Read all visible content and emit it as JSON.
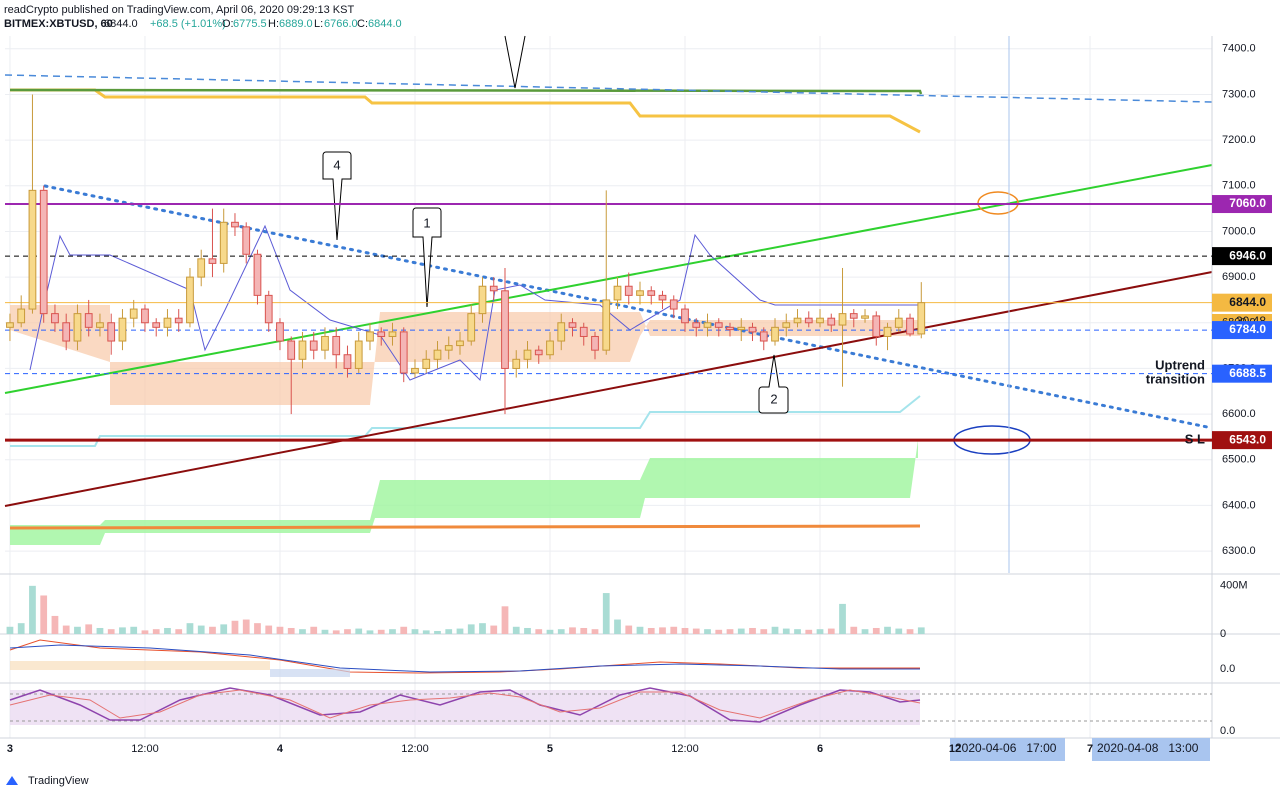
{
  "header": {
    "line1": "readCrypto published on TradingView.com, April 06, 2020 09:29:13 KST",
    "symbol": "BITMEX:XBTUSD, 60",
    "last": "6844.0",
    "change": "+68.5 (+1.01%)",
    "o_label": "O:",
    "o": "6775.5",
    "h_label": "H:",
    "h": "6889.0",
    "l_label": "L:",
    "l": "6766.0",
    "c_label": "C:",
    "c": "6844.0"
  },
  "footer": {
    "brand": "TradingView"
  },
  "chart_data": {
    "type": "candlestick",
    "up_color": "#f7d98b",
    "down_color": "#f4b5b5",
    "up_stroke": "#c89a3a",
    "down_stroke": "#d9534f",
    "open": [
      6790,
      6800,
      6830,
      7090,
      6820,
      6800,
      6760,
      6820,
      6790,
      6800,
      6760,
      6810,
      6830,
      6800,
      6790,
      6810,
      6800,
      6900,
      6940,
      6930,
      7020,
      7010,
      6950,
      6860,
      6800,
      6760,
      6720,
      6760,
      6740,
      6770,
      6730,
      6700,
      6760,
      6780,
      6770,
      6780,
      6690,
      6700,
      6720,
      6740,
      6750,
      6760,
      6820,
      6880,
      6870,
      6700,
      6720,
      6740,
      6730,
      6760,
      6800,
      6790,
      6770,
      6740,
      6850,
      6880,
      6860,
      6870,
      6860,
      6850,
      6830,
      6800,
      6790,
      6800,
      6790,
      6785,
      6790,
      6780,
      6760,
      6790,
      6800,
      6810,
      6800,
      6810,
      6795,
      6820,
      6810,
      6815,
      6770,
      6790,
      6810,
      6775.5
    ],
    "high": [
      6820,
      6860,
      7300,
      7100,
      6840,
      6820,
      6840,
      6850,
      6820,
      6820,
      6830,
      6850,
      6840,
      6810,
      6830,
      6830,
      6920,
      6960,
      7050,
      7050,
      7040,
      7020,
      6960,
      6870,
      6810,
      6770,
      6780,
      6780,
      6790,
      6790,
      6750,
      6780,
      6800,
      6790,
      6800,
      6790,
      6720,
      6740,
      6760,
      6770,
      6780,
      6840,
      6900,
      6900,
      6920,
      6740,
      6760,
      6750,
      6780,
      6820,
      6810,
      6800,
      6780,
      7090,
      6900,
      6910,
      6890,
      6880,
      6870,
      6860,
      6840,
      6810,
      6820,
      6810,
      6800,
      6810,
      6800,
      6790,
      6810,
      6820,
      6830,
      6825,
      6830,
      6820,
      6920,
      6830,
      6830,
      6825,
      6800,
      6830,
      6820,
      6889
    ],
    "low": [
      6760,
      6790,
      6820,
      6800,
      6780,
      6740,
      6740,
      6770,
      6770,
      6730,
      6740,
      6790,
      6780,
      6770,
      6770,
      6780,
      6790,
      6880,
      6900,
      6910,
      6990,
      6930,
      6840,
      6780,
      6740,
      6600,
      6700,
      6720,
      6720,
      6700,
      6680,
      6690,
      6740,
      6750,
      6750,
      6670,
      6680,
      6690,
      6700,
      6720,
      6730,
      6750,
      6800,
      6850,
      6600,
      6680,
      6700,
      6710,
      6720,
      6740,
      6770,
      6750,
      6720,
      6730,
      6830,
      6840,
      6840,
      6840,
      6830,
      6810,
      6780,
      6770,
      6770,
      6770,
      6770,
      6760,
      6760,
      6740,
      6750,
      6770,
      6790,
      6790,
      6790,
      6780,
      6660,
      6790,
      6800,
      6750,
      6740,
      6780,
      6770,
      6766
    ],
    "close": [
      6800,
      6830,
      7090,
      6820,
      6800,
      6760,
      6820,
      6790,
      6800,
      6760,
      6810,
      6830,
      6800,
      6790,
      6810,
      6800,
      6900,
      6940,
      6930,
      7020,
      7010,
      6950,
      6860,
      6800,
      6760,
      6720,
      6760,
      6740,
      6770,
      6730,
      6700,
      6760,
      6780,
      6770,
      6780,
      6690,
      6700,
      6720,
      6740,
      6750,
      6760,
      6820,
      6880,
      6870,
      6700,
      6720,
      6740,
      6730,
      6760,
      6800,
      6790,
      6770,
      6740,
      6850,
      6880,
      6860,
      6870,
      6860,
      6850,
      6830,
      6800,
      6790,
      6800,
      6790,
      6785,
      6790,
      6780,
      6760,
      6790,
      6800,
      6810,
      6800,
      6810,
      6795,
      6820,
      6810,
      6815,
      6770,
      6790,
      6810,
      6775.5,
      6844
    ],
    "volume": [
      60,
      90,
      400,
      320,
      150,
      70,
      60,
      80,
      50,
      40,
      55,
      60,
      30,
      40,
      50,
      40,
      90,
      70,
      60,
      80,
      110,
      120,
      90,
      70,
      60,
      50,
      40,
      60,
      35,
      30,
      40,
      45,
      30,
      35,
      40,
      60,
      40,
      30,
      25,
      40,
      45,
      80,
      90,
      70,
      230,
      60,
      50,
      40,
      35,
      40,
      55,
      50,
      40,
      340,
      120,
      70,
      60,
      50,
      55,
      60,
      50,
      45,
      40,
      35,
      40,
      45,
      50,
      40,
      60,
      45,
      40,
      35,
      40,
      45,
      250,
      60,
      40,
      50,
      60,
      45,
      40,
      55
    ],
    "ylim": [
      6252,
      7428
    ],
    "yticks": [
      {
        "value": 6300,
        "label": "6300.0"
      },
      {
        "value": 6400,
        "label": "6400.0"
      },
      {
        "value": 6500,
        "label": "6500.0"
      },
      {
        "value": 6600,
        "label": "6600.0"
      },
      {
        "value": 6700,
        "label": "6700.0"
      },
      {
        "value": 6800,
        "label": "6800.0"
      },
      {
        "value": 6900,
        "label": "6900.0"
      },
      {
        "value": 7000,
        "label": "7000.0"
      },
      {
        "value": 7100,
        "label": "7100.0"
      },
      {
        "value": 7200,
        "label": "7200.0"
      },
      {
        "value": 7300,
        "label": "7300.0"
      },
      {
        "value": 7400,
        "label": "7400.0"
      }
    ],
    "xlim": [
      -0.44,
      106.84
    ],
    "xticks": [
      {
        "value": 0,
        "label": "3"
      },
      {
        "value": 12,
        "label": "12:00"
      },
      {
        "value": 24,
        "label": "4"
      },
      {
        "value": 36,
        "label": "12:00"
      },
      {
        "value": 48,
        "label": "5"
      },
      {
        "value": 60,
        "label": "12:00"
      },
      {
        "value": 72,
        "label": "6"
      },
      {
        "value": 84,
        "label": "12"
      },
      {
        "value": 96,
        "label": "7"
      }
    ],
    "vlim": [
      0,
      490
    ],
    "vticks": [
      0,
      {
        "value": 400,
        "label": "400M"
      }
    ],
    "macd_tick": {
      "value": 0,
      "label": "0.0"
    },
    "rsi_tick": {
      "value": 0,
      "label": "0.0"
    },
    "grid": true,
    "price_lines": [
      {
        "value": 7060,
        "label": "7060.0",
        "color": "#9c27b0"
      },
      {
        "value": 6946,
        "label": "6946.0",
        "color": "#000000"
      },
      {
        "value": 6844,
        "label": "6844.0",
        "color": "#f4b942"
      },
      {
        "value": 6784,
        "label": "6784.0",
        "color": "#2962ff"
      },
      {
        "value": 6688.5,
        "label": "6688.5",
        "color": "#2962ff"
      },
      {
        "value": 6543,
        "label": "6543.0",
        "color": "#a01010"
      }
    ],
    "countdown": "30:48",
    "annotations": [
      "4",
      "1",
      "2"
    ],
    "note_line1": "Uptrend",
    "note_line2": "transition",
    "stop_loss": "S  L",
    "date_labels": [
      "2020-04-06   17:00",
      "2020-04-08   13:00"
    ]
  }
}
